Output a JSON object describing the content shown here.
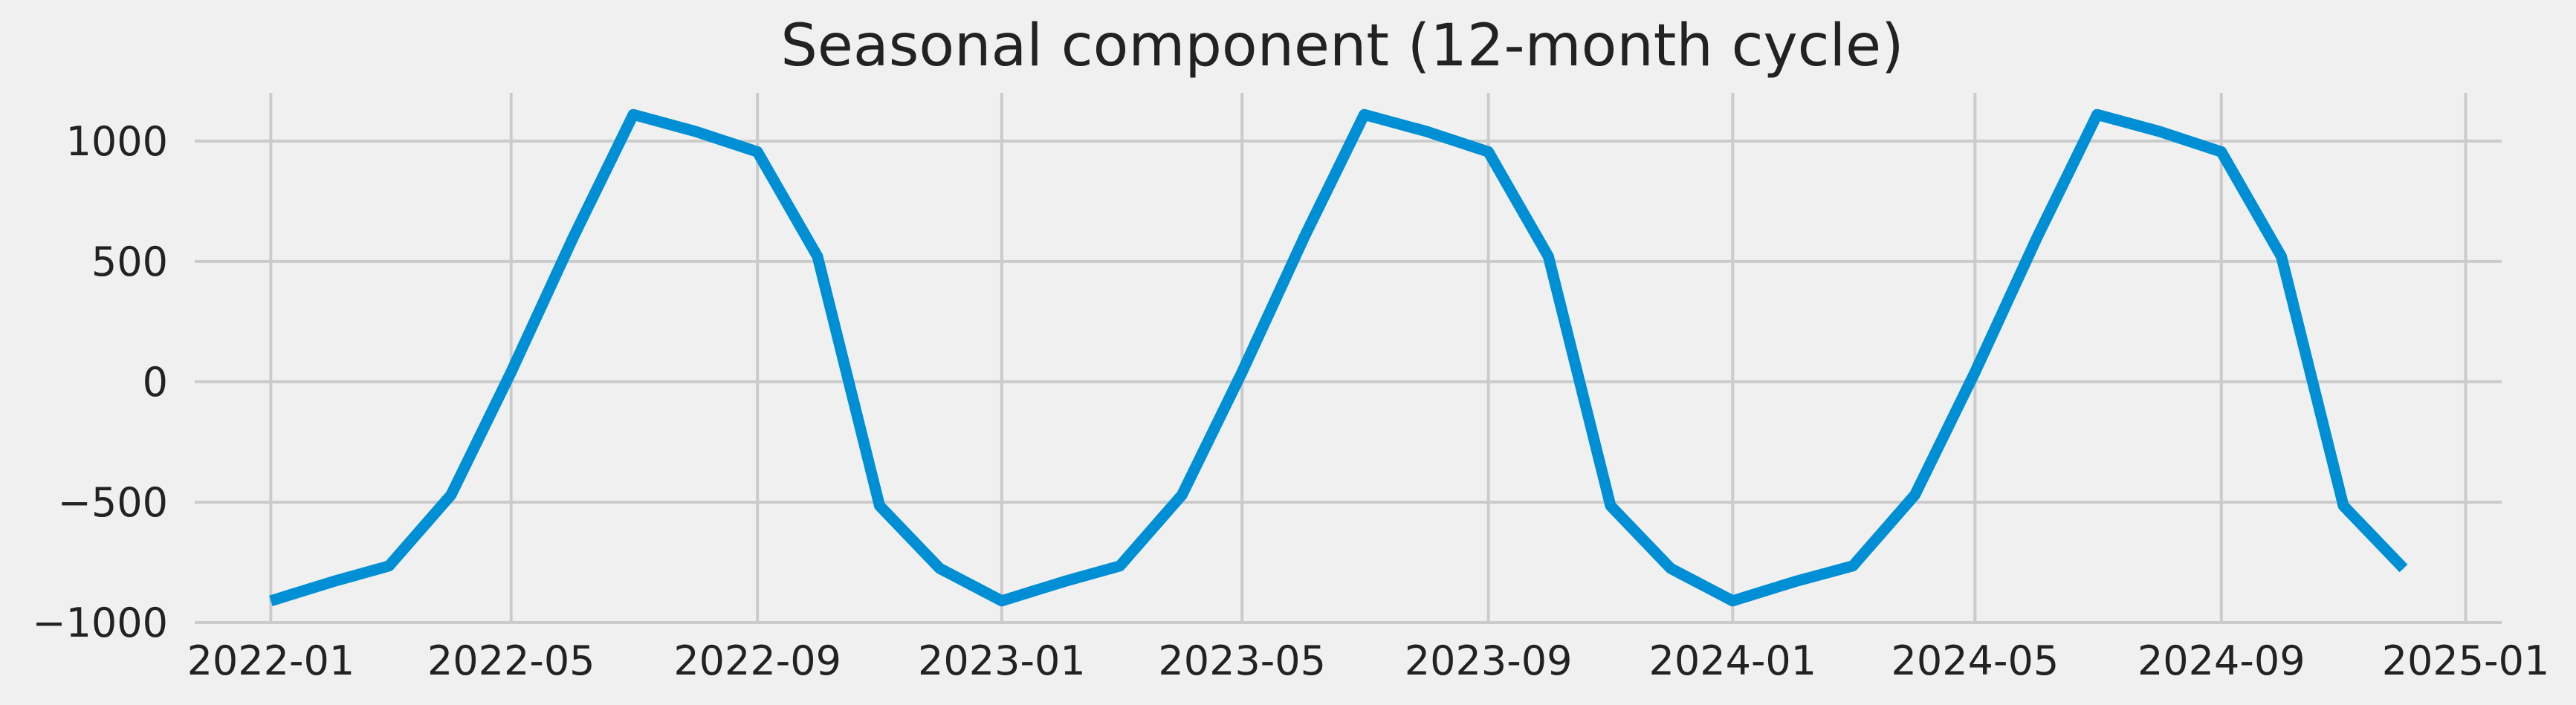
{
  "chart_data": {
    "type": "line",
    "title": "Seasonal component (12-month cycle)",
    "xlabel": "",
    "ylabel": "",
    "x": [
      "2022-01",
      "2022-02",
      "2022-03",
      "2022-04",
      "2022-05",
      "2022-06",
      "2022-07",
      "2022-08",
      "2022-09",
      "2022-10",
      "2022-11",
      "2022-12",
      "2023-01",
      "2023-02",
      "2023-03",
      "2023-04",
      "2023-05",
      "2023-06",
      "2023-07",
      "2023-08",
      "2023-09",
      "2023-10",
      "2023-11",
      "2023-12",
      "2024-01",
      "2024-02",
      "2024-03",
      "2024-04",
      "2024-05",
      "2024-06",
      "2024-07",
      "2024-08",
      "2024-09",
      "2024-10",
      "2024-11",
      "2024-12"
    ],
    "series": [
      {
        "values": [
          -910,
          -830,
          -765,
          -470,
          40,
          600,
          1110,
          1040,
          955,
          520,
          -515,
          -775,
          -910,
          -830,
          -765,
          -470,
          40,
          600,
          1110,
          1040,
          955,
          520,
          -515,
          -775,
          -910,
          -830,
          -765,
          -470,
          40,
          600,
          1110,
          1040,
          955,
          520,
          -515,
          -775
        ],
        "color": "#008fd5"
      }
    ],
    "ylim": [
      -1000,
      1200
    ],
    "yticks": [
      -1000,
      -500,
      0,
      500,
      1000
    ],
    "ytick_labels": [
      "−1000",
      "−500",
      "0",
      "500",
      "1000"
    ],
    "xlim": [
      "2021-11-24",
      "2025-01-19"
    ],
    "xticks": [
      "2022-01-01",
      "2022-05-01",
      "2022-09-01",
      "2023-01-01",
      "2023-05-01",
      "2023-09-01",
      "2024-01-01",
      "2024-05-01",
      "2024-09-01",
      "2025-01-01"
    ],
    "xtick_labels": [
      "2022-01",
      "2022-05",
      "2022-09",
      "2023-01",
      "2023-05",
      "2023-09",
      "2024-01",
      "2024-05",
      "2024-09",
      "2025-01"
    ],
    "grid": true,
    "background": "#f0f0f0",
    "grid_color": "#cbcbcb"
  }
}
